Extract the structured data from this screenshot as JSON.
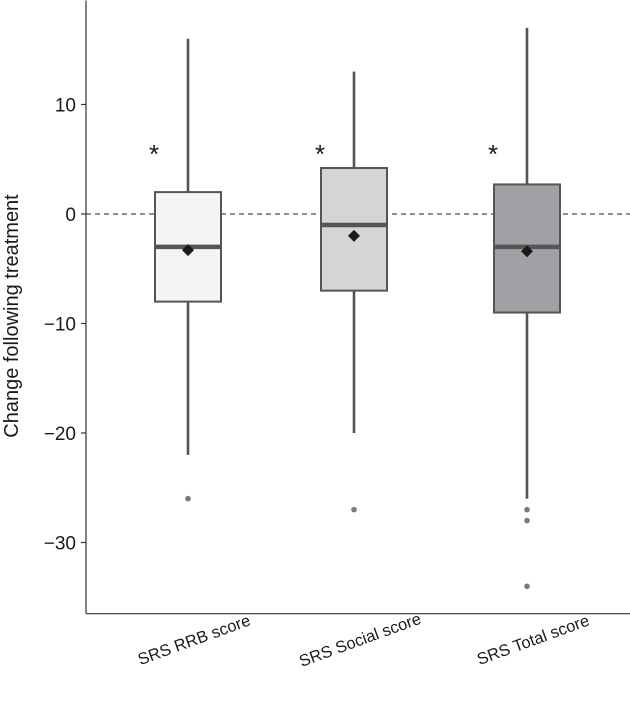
{
  "chart_data": {
    "type": "boxplot",
    "title": "",
    "xlabel": "",
    "ylabel": "Change following treatment",
    "ylim": [
      -36.5,
      19.5
    ],
    "yticks": [
      -30,
      -20,
      -10,
      0,
      10
    ],
    "reference_line": {
      "y": 0,
      "style": "dashed"
    },
    "grid": false,
    "legend": "none",
    "categories": [
      "SRS RRB score",
      "SRS Social score",
      "SRS Total score"
    ],
    "boxes": [
      {
        "category": "SRS RRB score",
        "whisker_low": -22,
        "q1": -8,
        "median": -3,
        "q3": 2,
        "whisker_high": 16,
        "mean": -3.3,
        "outliers": [
          -26
        ],
        "significance": "*",
        "fill": "#f4f4f4"
      },
      {
        "category": "SRS Social score",
        "whisker_low": -20,
        "q1": -7,
        "median": -1,
        "q3": 4.2,
        "whisker_high": 13,
        "mean": -2,
        "outliers": [
          -27
        ],
        "significance": "*",
        "fill": "#d4d5d7"
      },
      {
        "category": "SRS Total score",
        "whisker_low": -26,
        "q1": -9,
        "median": -3,
        "q3": 2.7,
        "whisker_high": 17,
        "mean": -3.4,
        "outliers": [
          -27,
          -28,
          -34
        ],
        "significance": "*",
        "fill": "#a0a1a4"
      }
    ],
    "colors": {
      "box_stroke": "#555555",
      "median": "#555555",
      "mean_marker": "#1a1a1a",
      "outlier": "#7a7a7a",
      "axis": "#333333"
    }
  }
}
